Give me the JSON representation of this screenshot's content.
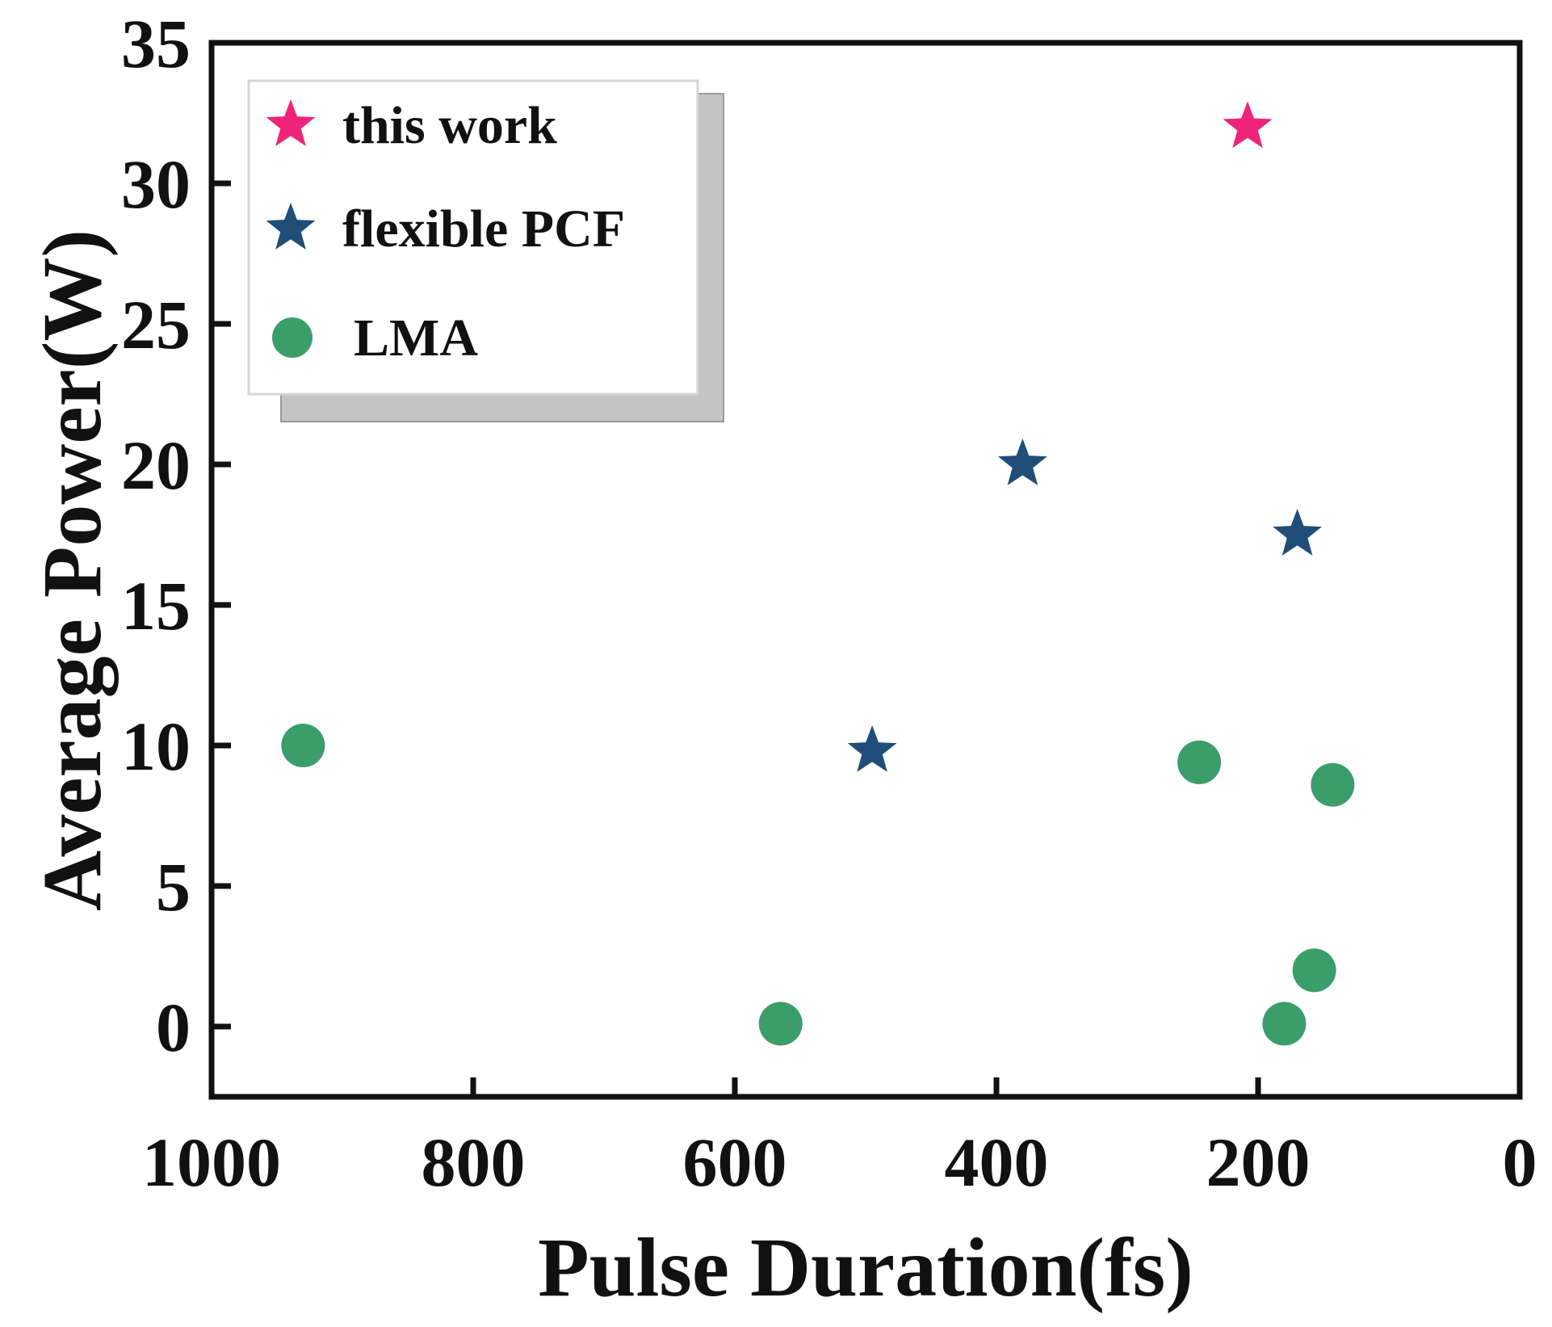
{
  "chart_data": {
    "type": "scatter",
    "title": "",
    "xlabel": "Pulse Duration(fs)",
    "ylabel": "Average Power(W)",
    "xlim": [
      1000,
      0
    ],
    "ylim": [
      -2.5,
      35
    ],
    "x_reversed": true,
    "xticks": [
      1000,
      800,
      600,
      400,
      200,
      0
    ],
    "yticks": [
      0,
      5,
      10,
      15,
      20,
      25,
      30,
      35
    ],
    "grid": false,
    "legend": {
      "position": "top-left"
    },
    "series": [
      {
        "name": "this work",
        "marker": "star",
        "color": "#f0237a",
        "points": [
          {
            "x": 208,
            "y": 32
          }
        ]
      },
      {
        "name": "flexible PCF",
        "marker": "star",
        "color": "#1f4e79",
        "points": [
          {
            "x": 380,
            "y": 20
          },
          {
            "x": 495,
            "y": 9.8
          },
          {
            "x": 170,
            "y": 17.5
          }
        ]
      },
      {
        "name": "LMA",
        "marker": "circle",
        "color": "#3a9e6b",
        "points": [
          {
            "x": 930,
            "y": 10
          },
          {
            "x": 245,
            "y": 9.4
          },
          {
            "x": 143,
            "y": 8.6
          },
          {
            "x": 157,
            "y": 2
          },
          {
            "x": 180,
            "y": 0.1
          },
          {
            "x": 565,
            "y": 0.1
          }
        ]
      }
    ]
  }
}
